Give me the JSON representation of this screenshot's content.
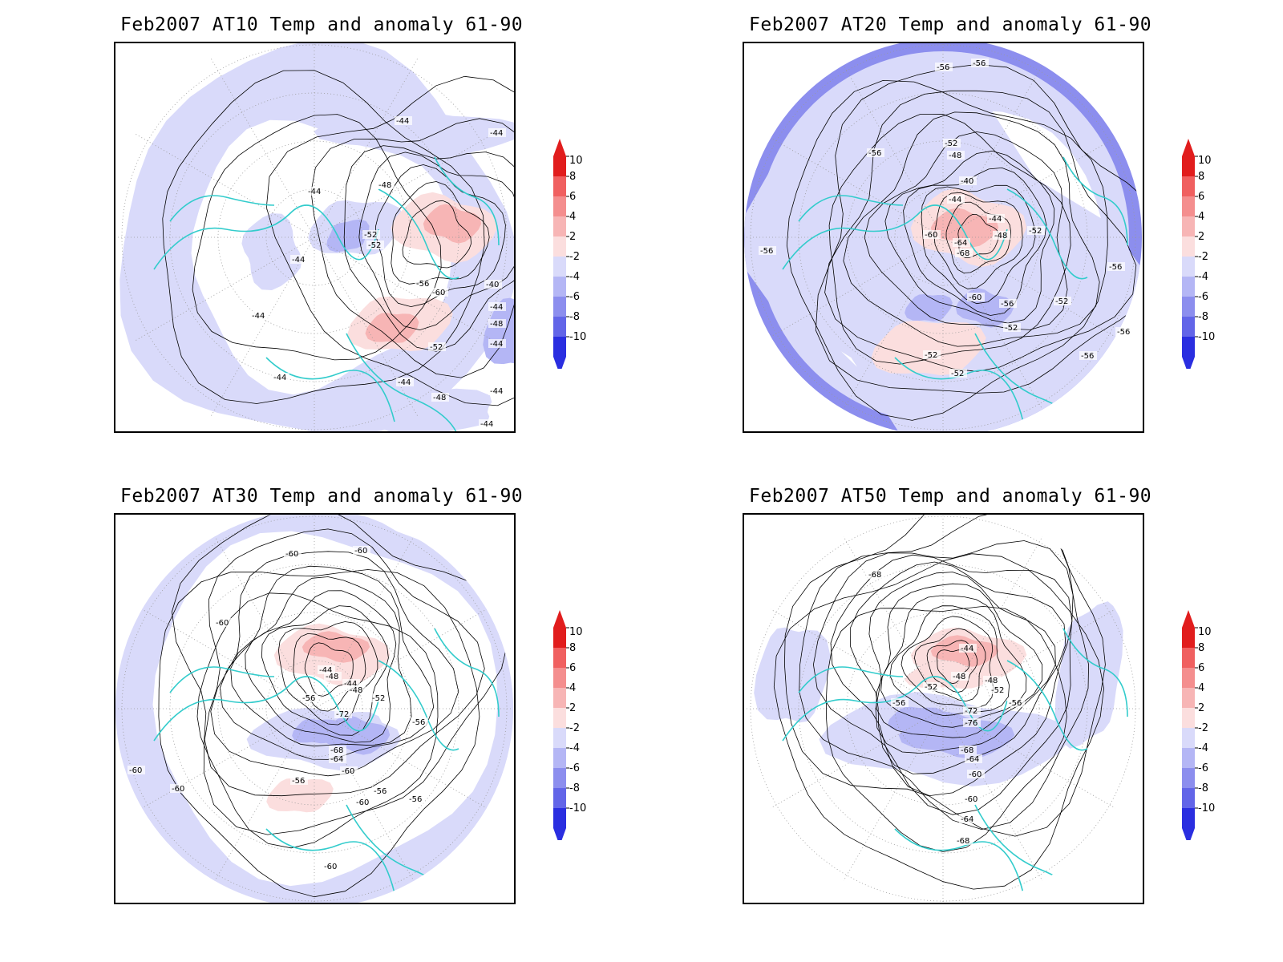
{
  "panels": [
    {
      "title": "Feb2007 AT10 Temp and anomaly 61-90",
      "contour_labels": [
        "-44",
        "-44",
        "-44",
        "-48",
        "-52",
        "-52",
        "-56",
        "-60",
        "-40",
        "-44",
        "-48",
        "-52",
        "-44",
        "-44",
        "-48",
        "-44",
        "-44",
        "-44",
        "-44",
        "-44"
      ]
    },
    {
      "title": "Feb2007 AT20 Temp and anomaly 61-90",
      "contour_labels": [
        "-56",
        "-56",
        "-56",
        "-52",
        "-48",
        "-40",
        "-44",
        "-44",
        "-48",
        "-52",
        "-60",
        "-64",
        "-68",
        "-60",
        "-56",
        "-52",
        "-52",
        "-52",
        "-52",
        "-56",
        "-56",
        "-56",
        "-56"
      ]
    },
    {
      "title": "Feb2007 AT30 Temp and anomaly 61-90",
      "contour_labels": [
        "-60",
        "-60",
        "-60",
        "-60",
        "-60",
        "-60",
        "-44",
        "-48",
        "-44",
        "-48",
        "-52",
        "-56",
        "-72",
        "-56",
        "-68",
        "-64",
        "-60",
        "-56",
        "-56",
        "-56",
        "-60"
      ]
    },
    {
      "title": "Feb2007 AT50 Temp and anomaly 61-90",
      "contour_labels": [
        "-68",
        "-44",
        "-48",
        "-48",
        "-52",
        "-52",
        "-56",
        "-56",
        "-72",
        "-76",
        "-68",
        "-64",
        "-60",
        "-60",
        "-64",
        "-68"
      ]
    }
  ],
  "colorbar": {
    "labels": [
      "10",
      "8",
      "6",
      "4",
      "2",
      "-2",
      "-4",
      "-6",
      "-8",
      "-10"
    ],
    "colors": [
      "#e11d1d",
      "#f06060",
      "#f48e8e",
      "#f7b5b5",
      "#fbdede",
      "#d9dafa",
      "#b4b6f5",
      "#8c8eee",
      "#6265e8",
      "#2a2ee0"
    ],
    "unit": ""
  },
  "colors": {
    "coast": "#33cccc",
    "contour": "#000000",
    "neg_light": "#d9dafa",
    "neg_mid": "#b4b6f5",
    "neg_strong": "#8c8eee",
    "pos_light": "#fbdede",
    "pos_mid": "#f7b5b5",
    "pos_strong": "#f06060"
  }
}
